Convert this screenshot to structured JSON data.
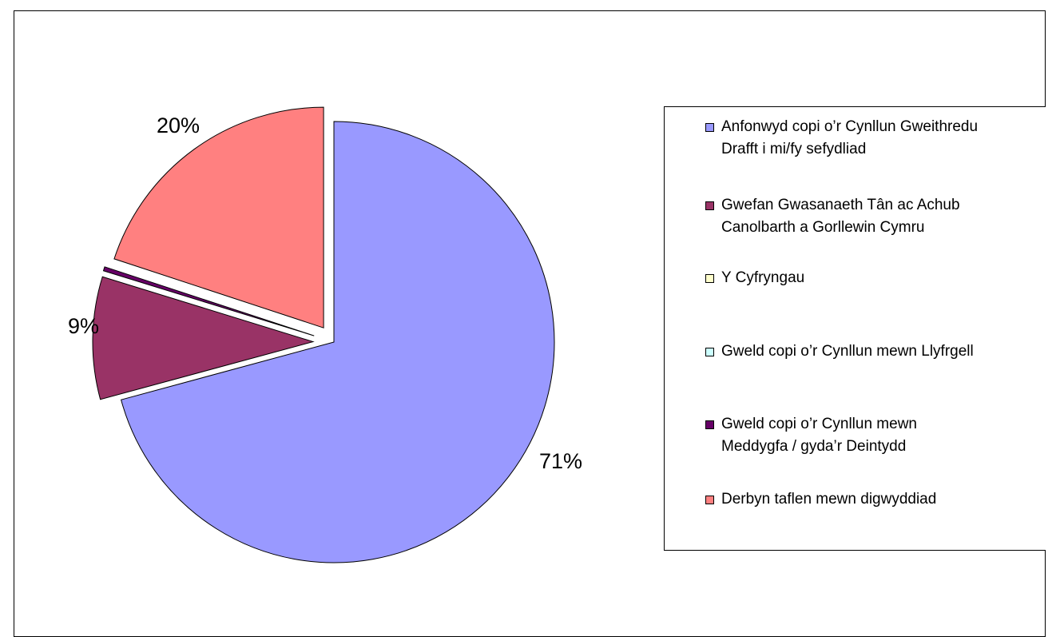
{
  "chart_data": {
    "type": "pie",
    "title": "",
    "categories": [
      "Anfonwyd copi o’r Cynllun Gweithredu Drafft i mi/fy sefydliad",
      "Gwefan Gwasanaeth Tân ac Achub Canolbarth a Gorllewin Cymru",
      "Y Cyfryngau",
      "Gweld copi o’r Cynllun mewn Llyfrgell",
      "Gweld copi o’r Cynllun mewn Meddygfa / gyda’r Deintydd",
      "Derbyn taflen mewn digwyddiad"
    ],
    "values": [
      71,
      9,
      0,
      0,
      0.3,
      20
    ],
    "data_labels": [
      "71%",
      "9%",
      "",
      "",
      "",
      "20%"
    ],
    "colors": [
      "#9999ff",
      "#993366",
      "#ffffcc",
      "#ccffff",
      "#660066",
      "#ff8080"
    ],
    "exploded": [
      false,
      true,
      true,
      true,
      true,
      true
    ],
    "legend_position": "right"
  },
  "legend": {
    "items": [
      {
        "line1": "Anfonwyd copi o’r Cynllun Gweithredu",
        "line2": "Drafft i mi/fy sefydliad",
        "color": "#9999ff"
      },
      {
        "line1": "Gwefan Gwasanaeth Tân ac Achub",
        "line2": "Canolbarth a Gorllewin Cymru",
        "color": "#993366"
      },
      {
        "line1": "Y Cyfryngau",
        "line2": "",
        "color": "#ffffcc"
      },
      {
        "line1": "Gweld copi o’r Cynllun mewn Llyfrgell",
        "line2": "",
        "color": "#ccffff"
      },
      {
        "line1": "Gweld copi o’r Cynllun  mewn",
        "line2": "Meddygfa / gyda’r Deintydd",
        "color": "#660066"
      },
      {
        "line1": "Derbyn taflen mewn digwyddiad",
        "line2": "",
        "color": "#ff8080"
      }
    ]
  }
}
